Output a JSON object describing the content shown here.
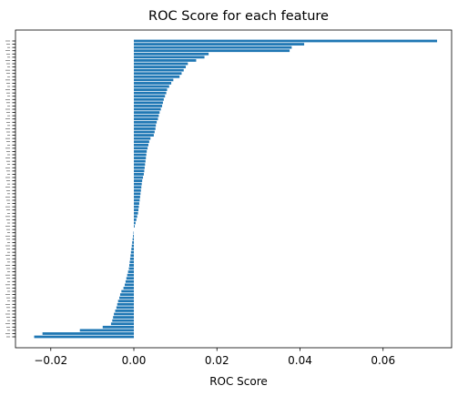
{
  "chart_data": {
    "type": "bar",
    "orientation": "horizontal",
    "title": "ROC Score for each feature",
    "xlabel": "ROC Score",
    "ylabel": "",
    "xlim": [
      -0.0285,
      0.0765
    ],
    "xticks": [
      -0.02,
      0.0,
      0.02,
      0.04,
      0.06
    ],
    "xtick_labels": [
      "−0.02",
      "0.00",
      "0.02",
      "0.04",
      "0.06"
    ],
    "grid": false,
    "legend": "none",
    "bar_color": "#1f77b4",
    "values": [
      0.073,
      0.041,
      0.038,
      0.0375,
      0.018,
      0.017,
      0.015,
      0.013,
      0.0125,
      0.012,
      0.0115,
      0.011,
      0.0095,
      0.009,
      0.0085,
      0.008,
      0.0078,
      0.0075,
      0.0072,
      0.007,
      0.0068,
      0.0065,
      0.0062,
      0.006,
      0.0058,
      0.0055,
      0.0053,
      0.0052,
      0.005,
      0.0048,
      0.004,
      0.0037,
      0.0035,
      0.0033,
      0.0031,
      0.003,
      0.0029,
      0.0028,
      0.0027,
      0.0026,
      0.0025,
      0.0024,
      0.0022,
      0.002,
      0.0019,
      0.0018,
      0.0017,
      0.0016,
      0.0015,
      0.0014,
      0.0013,
      0.0012,
      0.0011,
      0.001,
      0.0008,
      0.0006,
      0.0004,
      0.0002,
      0.0,
      -0.0001,
      -0.0002,
      -0.0003,
      -0.0004,
      -0.0005,
      -0.0006,
      -0.0007,
      -0.0008,
      -0.0009,
      -0.001,
      -0.0011,
      -0.0012,
      -0.0014,
      -0.0016,
      -0.0018,
      -0.002,
      -0.0022,
      -0.0025,
      -0.003,
      -0.0033,
      -0.0035,
      -0.0038,
      -0.004,
      -0.0042,
      -0.0045,
      -0.0048,
      -0.005,
      -0.0052,
      -0.0055,
      -0.0075,
      -0.013,
      -0.022,
      -0.024
    ]
  }
}
